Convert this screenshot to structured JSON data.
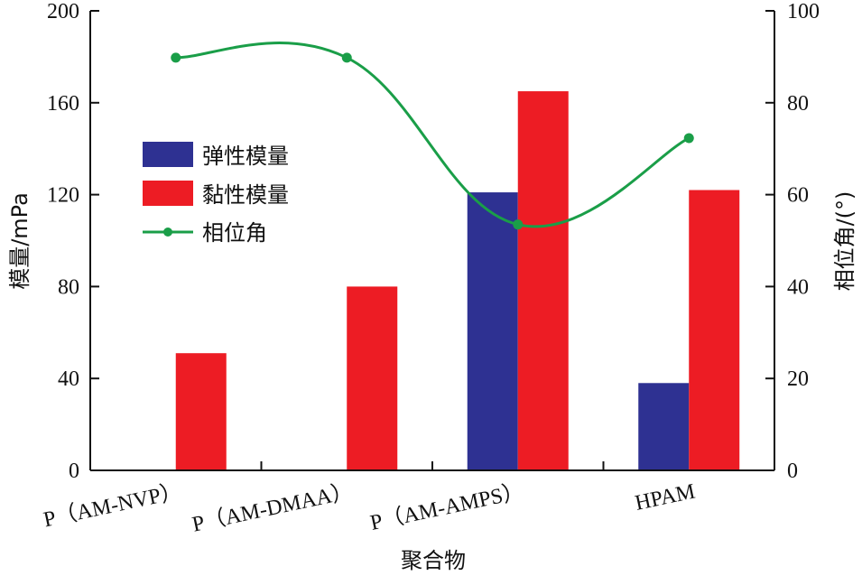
{
  "chart_data": {
    "type": "bar",
    "categories": [
      "P（AM-NVP）",
      "P（AM-DMAA）",
      "P（AM-AMPS）",
      "HPAM"
    ],
    "series": [
      {
        "name": "弹性模量",
        "kind": "bar",
        "axis": "left",
        "color": "#2e3192",
        "values": [
          null,
          null,
          121,
          38
        ]
      },
      {
        "name": "黏性模量",
        "kind": "bar",
        "axis": "left",
        "color": "#ed1c24",
        "values": [
          51,
          80,
          165,
          122
        ]
      },
      {
        "name": "相位角",
        "kind": "line",
        "axis": "right",
        "color": "#1a9e48",
        "values": [
          89.8,
          89.8,
          53.5,
          72.3
        ]
      }
    ],
    "xlabel": "聚合物",
    "ylabel_left": "模量/mPa",
    "ylabel_right": "相位角/(°)",
    "ylim_left": [
      0,
      200
    ],
    "ylim_right": [
      0,
      100
    ],
    "yticks_left": [
      "0",
      "40",
      "80",
      "120",
      "160",
      "200"
    ],
    "yticks_right": [
      "0",
      "20",
      "40",
      "60",
      "80",
      "100"
    ],
    "grid": false,
    "legend_position": "upper-left"
  }
}
